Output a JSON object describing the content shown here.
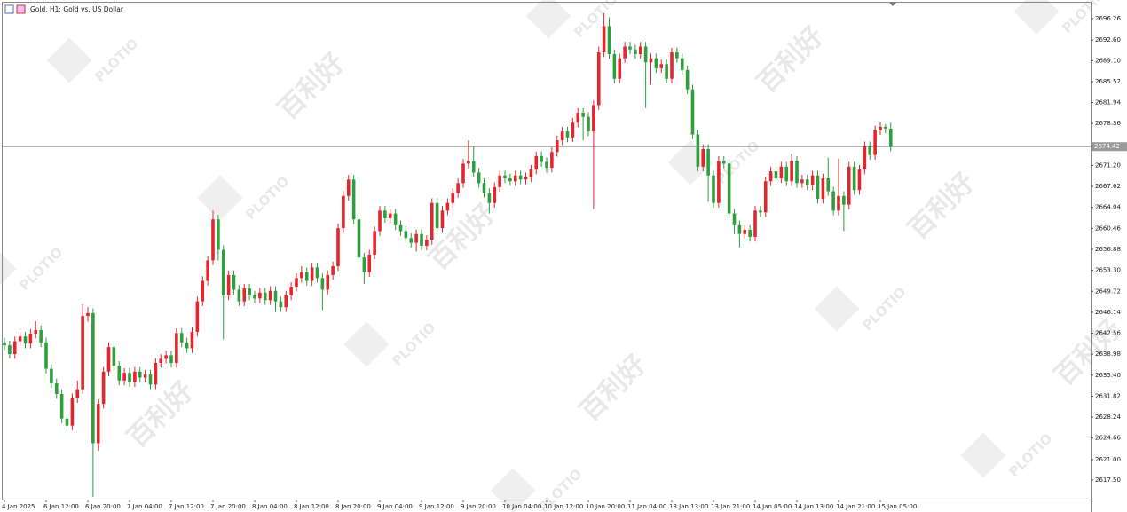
{
  "chart_data": {
    "type": "candlestick",
    "title": "Gold, H1: Gold vs. US Dollar",
    "watermark": {
      "logo": "PLOTIO",
      "text": "百利好"
    },
    "up_color": "#e3262e",
    "down_color": "#2e9e3f",
    "current_price": {
      "value": 2674.42,
      "label": "2674.42"
    },
    "ylim": [
      2614.17,
      2698.99
    ],
    "yticks": [
      2696.26,
      {
        "value": 2692.6,
        "label": "2692.60"
      },
      {
        "value": 2689.1,
        "label": "2689.10"
      },
      2685.52,
      2681.94,
      2678.36,
      {
        "value": 2671.2,
        "label": "2671.20"
      },
      2667.62,
      2664.04,
      2660.46,
      2656.88,
      {
        "value": 2653.3,
        "label": "2653.30"
      },
      2649.72,
      2646.14,
      2642.56,
      2638.98,
      {
        "value": 2635.4,
        "label": "2635.40"
      },
      2631.82,
      2628.24,
      2624.66,
      {
        "value": 2621.0,
        "label": "2621.00"
      },
      {
        "value": 2617.5,
        "label": "2617.50"
      }
    ],
    "categories": [
      "4 Jan 2025",
      null,
      null,
      null,
      null,
      null,
      null,
      null,
      "6 Jan 12:00",
      null,
      null,
      null,
      null,
      null,
      null,
      null,
      "6 Jan 20:00",
      null,
      null,
      null,
      null,
      null,
      null,
      null,
      "7 Jan 04:00",
      null,
      null,
      null,
      null,
      null,
      null,
      null,
      "7 Jan 12:00",
      null,
      null,
      null,
      null,
      null,
      null,
      null,
      "7 Jan 20:00",
      null,
      null,
      null,
      null,
      null,
      null,
      null,
      "8 Jan 04:00",
      null,
      null,
      null,
      null,
      null,
      null,
      null,
      "8 Jan 12:00",
      null,
      null,
      null,
      null,
      null,
      null,
      null,
      "8 Jan 20:00",
      null,
      null,
      null,
      null,
      null,
      null,
      null,
      "9 Jan 04:00",
      null,
      null,
      null,
      null,
      null,
      null,
      null,
      "9 Jan 12:00",
      null,
      null,
      null,
      null,
      null,
      null,
      null,
      "9 Jan 20:00",
      null,
      null,
      null,
      null,
      null,
      null,
      null,
      "10 Jan 04:00",
      null,
      null,
      null,
      null,
      null,
      null,
      null,
      "10 Jan 12:00",
      null,
      null,
      null,
      null,
      null,
      null,
      null,
      "10 Jan 20:00",
      null,
      null,
      null,
      null,
      null,
      null,
      null,
      "11 Jan 04:00",
      null,
      null,
      null,
      null,
      null,
      null,
      null,
      "13 Jan 13:00",
      null,
      null,
      null,
      null,
      null,
      null,
      null,
      "13 Jan 21:00",
      null,
      null,
      null,
      null,
      null,
      null,
      null,
      "14 Jan 05:00",
      null,
      null,
      null,
      null,
      null,
      null,
      null,
      "14 Jan 13:00",
      null,
      null,
      null,
      null,
      null,
      null,
      null,
      "14 Jan 21:00",
      null,
      null,
      null,
      null,
      null,
      null,
      null,
      "15 Jan 05:00",
      null,
      null
    ],
    "open": [
      2641.0,
      2640.5,
      2639.0,
      2641.2,
      2642.0,
      2640.8,
      2642.5,
      2643.1,
      2641.0,
      2636.5,
      2634.0,
      2632.2,
      2628.0,
      2626.8,
      2631.5,
      2633.0,
      2645.5,
      2646.0,
      2623.8,
      2630.5,
      2636.0,
      2640.2,
      2637.0,
      2634.5,
      2635.8,
      2634.2,
      2636.0,
      2635.0,
      2635.5,
      2633.8,
      2637.5,
      2638.2,
      2638.8,
      2637.5,
      2642.6,
      2641.0,
      2640.0,
      2642.8,
      2648.0,
      2651.5,
      2655.0,
      2662.0,
      2656.8,
      2649.0,
      2652.5,
      2650.0,
      2648.0,
      2650.2,
      2649.0,
      2648.5,
      2649.5,
      2648.2,
      2649.8,
      2648.0,
      2647.0,
      2649.0,
      2650.5,
      2652.0,
      2653.0,
      2651.5,
      2653.8,
      2652.0,
      2650.0,
      2652.5,
      2654.0,
      2660.5,
      2666.0,
      2668.8,
      2662.0,
      2655.5,
      2653.0,
      2656.0,
      2660.0,
      2663.5,
      2662.2,
      2663.0,
      2661.0,
      2660.0,
      2658.8,
      2658.0,
      2659.5,
      2657.5,
      2658.5,
      2664.8,
      2660.5,
      2663.5,
      2664.8,
      2666.5,
      2668.2,
      2671.5,
      2672.0,
      2670.0,
      2668.2,
      2666.5,
      2664.8,
      2667.5,
      2669.5,
      2669.0,
      2668.5,
      2669.5,
      2668.8,
      2669.2,
      2670.5,
      2672.8,
      2671.8,
      2670.8,
      2673.5,
      2675.5,
      2677.0,
      2676.0,
      2678.5,
      2680.2,
      2679.5,
      2677.0,
      2681.5,
      2690.5,
      2695.0,
      2690.2,
      2686.0,
      2689.5,
      2691.5,
      2691.0,
      2690.2,
      2691.5,
      2688.8,
      2689.5,
      2687.8,
      2688.5,
      2686.0,
      2690.5,
      2689.5,
      2687.5,
      2684.2,
      2676.5,
      2671.0,
      2674.0,
      2669.5,
      2664.8,
      2672.0,
      2671.5,
      2663.0,
      2661.0,
      2659.5,
      2660.2,
      2659.0,
      2663.5,
      2663.2,
      2668.5,
      2670.2,
      2669.0,
      2671.0,
      2668.5,
      2672.0,
      2668.2,
      2668.8,
      2667.8,
      2669.5,
      2665.5,
      2669.0,
      2666.8,
      2663.5,
      2666.0,
      2664.5,
      2671.0,
      2667.0,
      2670.5,
      2674.5,
      2673.0,
      2677.2,
      2677.8,
      2677.5
    ],
    "high": [
      2641.8,
      2641.3,
      2642.0,
      2642.8,
      2642.8,
      2643.3,
      2644.6,
      2643.9,
      2641.8,
      2637.3,
      2634.8,
      2633.0,
      2628.8,
      2632.3,
      2634.5,
      2647.5,
      2647.0,
      2646.8,
      2631.3,
      2636.8,
      2641.0,
      2641.0,
      2637.8,
      2636.6,
      2636.6,
      2636.8,
      2636.8,
      2636.3,
      2636.3,
      2638.3,
      2639.0,
      2639.6,
      2639.6,
      2643.4,
      2643.4,
      2641.8,
      2643.6,
      2648.8,
      2652.3,
      2655.8,
      2663.5,
      2662.8,
      2657.6,
      2653.3,
      2653.3,
      2650.8,
      2651.0,
      2651.0,
      2649.8,
      2650.3,
      2650.3,
      2650.6,
      2650.6,
      2648.8,
      2649.8,
      2651.3,
      2652.8,
      2654.0,
      2653.8,
      2654.6,
      2654.6,
      2652.8,
      2653.3,
      2654.8,
      2661.3,
      2666.8,
      2669.6,
      2669.6,
      2662.8,
      2656.3,
      2656.8,
      2660.8,
      2664.3,
      2664.3,
      2663.8,
      2663.8,
      2661.8,
      2660.8,
      2659.6,
      2660.3,
      2660.3,
      2659.3,
      2665.6,
      2665.6,
      2664.3,
      2665.6,
      2667.3,
      2669.0,
      2672.3,
      2675.5,
      2674.5,
      2670.8,
      2669.0,
      2667.3,
      2668.3,
      2670.3,
      2670.3,
      2669.8,
      2670.3,
      2670.3,
      2670.0,
      2671.3,
      2673.6,
      2673.6,
      2672.6,
      2674.3,
      2676.3,
      2677.8,
      2677.8,
      2679.3,
      2681.0,
      2681.0,
      2680.3,
      2682.3,
      2691.5,
      2697.2,
      2696.5,
      2691.0,
      2690.3,
      2692.3,
      2692.3,
      2691.8,
      2692.3,
      2692.3,
      2690.3,
      2690.3,
      2689.3,
      2689.3,
      2691.3,
      2691.3,
      2690.3,
      2688.3,
      2685.0,
      2677.3,
      2674.8,
      2674.8,
      2670.3,
      2672.8,
      2672.8,
      2672.3,
      2663.8,
      2661.8,
      2661.0,
      2661.0,
      2664.3,
      2664.3,
      2669.3,
      2671.0,
      2671.0,
      2671.8,
      2671.8,
      2673.2,
      2672.8,
      2669.6,
      2669.6,
      2670.3,
      2670.3,
      2669.8,
      2672.5,
      2667.6,
      2672.4,
      2666.8,
      2671.8,
      2671.8,
      2671.3,
      2675.3,
      2675.3,
      2678.0,
      2678.6,
      2678.3,
      2678.5
    ],
    "low": [
      2639.7,
      2638.2,
      2638.2,
      2640.4,
      2640.0,
      2640.0,
      2641.7,
      2640.2,
      2635.7,
      2633.2,
      2631.4,
      2627.2,
      2625.8,
      2626.0,
      2630.7,
      2632.2,
      2644.5,
      2614.6,
      2622.5,
      2629.7,
      2635.2,
      2636.2,
      2633.7,
      2633.7,
      2633.4,
      2633.4,
      2634.2,
      2634.2,
      2633.0,
      2633.0,
      2636.7,
      2637.4,
      2636.7,
      2636.7,
      2640.2,
      2639.2,
      2639.2,
      2642.0,
      2647.2,
      2650.7,
      2654.2,
      2655.0,
      2641.5,
      2648.2,
      2649.2,
      2647.2,
      2647.2,
      2648.2,
      2647.7,
      2647.7,
      2647.4,
      2647.4,
      2646.2,
      2646.2,
      2646.2,
      2648.2,
      2649.7,
      2651.2,
      2650.7,
      2650.7,
      2651.2,
      2646.5,
      2649.2,
      2651.7,
      2653.2,
      2659.7,
      2665.2,
      2661.2,
      2654.7,
      2651.0,
      2652.2,
      2655.2,
      2659.2,
      2661.4,
      2661.4,
      2660.2,
      2659.2,
      2658.0,
      2657.2,
      2656.5,
      2656.7,
      2656.7,
      2657.7,
      2659.7,
      2659.7,
      2662.7,
      2664.0,
      2665.7,
      2667.4,
      2670.7,
      2669.2,
      2667.4,
      2665.7,
      2663.0,
      2664.0,
      2666.7,
      2668.2,
      2667.7,
      2667.7,
      2668.0,
      2668.0,
      2668.4,
      2669.7,
      2671.0,
      2670.0,
      2670.0,
      2672.7,
      2674.7,
      2675.2,
      2675.2,
      2677.7,
      2675.5,
      2676.2,
      2663.8,
      2680.7,
      2689.7,
      2689.4,
      2685.2,
      2685.2,
      2688.7,
      2690.2,
      2689.4,
      2689.4,
      2681.0,
      2685.0,
      2687.0,
      2687.0,
      2685.2,
      2685.2,
      2688.7,
      2686.7,
      2683.4,
      2675.7,
      2670.2,
      2670.2,
      2665.0,
      2664.0,
      2664.0,
      2670.7,
      2662.2,
      2659.5,
      2657.2,
      2658.7,
      2658.2,
      2658.2,
      2662.4,
      2662.4,
      2667.7,
      2668.2,
      2668.2,
      2667.7,
      2667.7,
      2667.4,
      2667.4,
      2667.0,
      2667.0,
      2664.7,
      2664.7,
      2666.0,
      2662.7,
      2662.7,
      2660.0,
      2663.7,
      2666.2,
      2666.2,
      2669.7,
      2672.2,
      2672.2,
      2676.4,
      2676.7,
      2673.6
    ],
    "close": [
      2640.5,
      2639.0,
      2641.2,
      2642.0,
      2640.8,
      2642.5,
      2643.1,
      2641.0,
      2636.5,
      2634.0,
      2632.2,
      2628.0,
      2626.8,
      2631.5,
      2633.0,
      2645.5,
      2646.0,
      2623.8,
      2630.5,
      2636.0,
      2640.2,
      2637.0,
      2634.5,
      2635.8,
      2634.2,
      2636.0,
      2635.0,
      2635.5,
      2633.8,
      2637.5,
      2638.2,
      2638.8,
      2637.5,
      2642.6,
      2641.0,
      2640.0,
      2642.8,
      2648.0,
      2651.5,
      2655.0,
      2662.0,
      2656.8,
      2649.0,
      2652.5,
      2650.0,
      2648.0,
      2650.2,
      2649.0,
      2648.5,
      2649.5,
      2648.2,
      2649.8,
      2648.0,
      2647.0,
      2649.0,
      2650.5,
      2652.0,
      2653.0,
      2651.5,
      2653.8,
      2652.0,
      2650.0,
      2652.5,
      2654.0,
      2660.5,
      2666.0,
      2668.8,
      2662.0,
      2655.5,
      2653.0,
      2656.0,
      2660.0,
      2663.5,
      2662.2,
      2663.0,
      2661.0,
      2660.0,
      2658.8,
      2658.0,
      2659.5,
      2657.5,
      2658.5,
      2664.8,
      2660.5,
      2663.5,
      2664.8,
      2666.5,
      2668.2,
      2671.5,
      2672.0,
      2670.0,
      2668.2,
      2666.5,
      2664.8,
      2667.5,
      2669.5,
      2669.0,
      2668.5,
      2669.5,
      2668.8,
      2669.2,
      2670.5,
      2672.8,
      2671.8,
      2670.8,
      2673.5,
      2675.5,
      2677.0,
      2676.0,
      2678.5,
      2680.2,
      2679.5,
      2677.0,
      2681.5,
      2690.5,
      2695.0,
      2690.2,
      2686.0,
      2689.5,
      2691.5,
      2691.0,
      2690.2,
      2691.5,
      2688.8,
      2689.5,
      2687.8,
      2688.5,
      2686.0,
      2690.5,
      2689.5,
      2687.5,
      2684.2,
      2676.5,
      2671.0,
      2674.0,
      2669.5,
      2664.8,
      2672.0,
      2671.5,
      2663.0,
      2661.0,
      2659.5,
      2660.2,
      2659.0,
      2663.5,
      2663.2,
      2668.5,
      2670.2,
      2669.0,
      2671.0,
      2668.5,
      2672.0,
      2668.2,
      2668.8,
      2667.8,
      2669.5,
      2665.5,
      2669.0,
      2666.8,
      2663.5,
      2666.0,
      2664.5,
      2671.0,
      2667.0,
      2670.5,
      2674.5,
      2673.0,
      2677.2,
      2677.8,
      2677.5,
      2674.42
    ]
  }
}
